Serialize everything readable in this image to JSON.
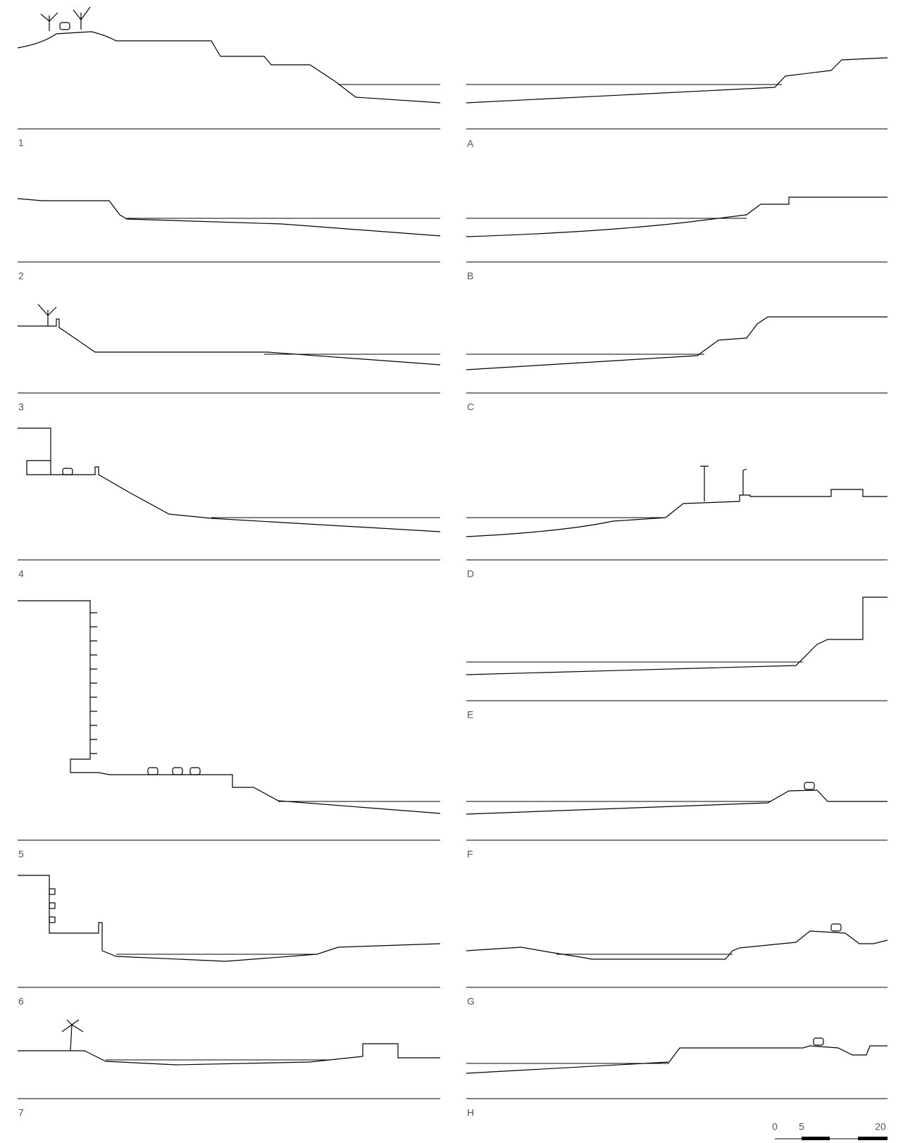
{
  "sections_left": [
    {
      "label": "1"
    },
    {
      "label": "2"
    },
    {
      "label": "3"
    },
    {
      "label": "4"
    },
    {
      "label": "5"
    },
    {
      "label": "6"
    },
    {
      "label": "7"
    }
  ],
  "sections_right": [
    {
      "label": "A"
    },
    {
      "label": "B"
    },
    {
      "label": "C"
    },
    {
      "label": "D"
    },
    {
      "label": "E"
    },
    {
      "label": "F"
    },
    {
      "label": "G"
    },
    {
      "label": "H"
    }
  ],
  "scale_bar": {
    "labels": [
      "0",
      "5",
      "20"
    ]
  }
}
